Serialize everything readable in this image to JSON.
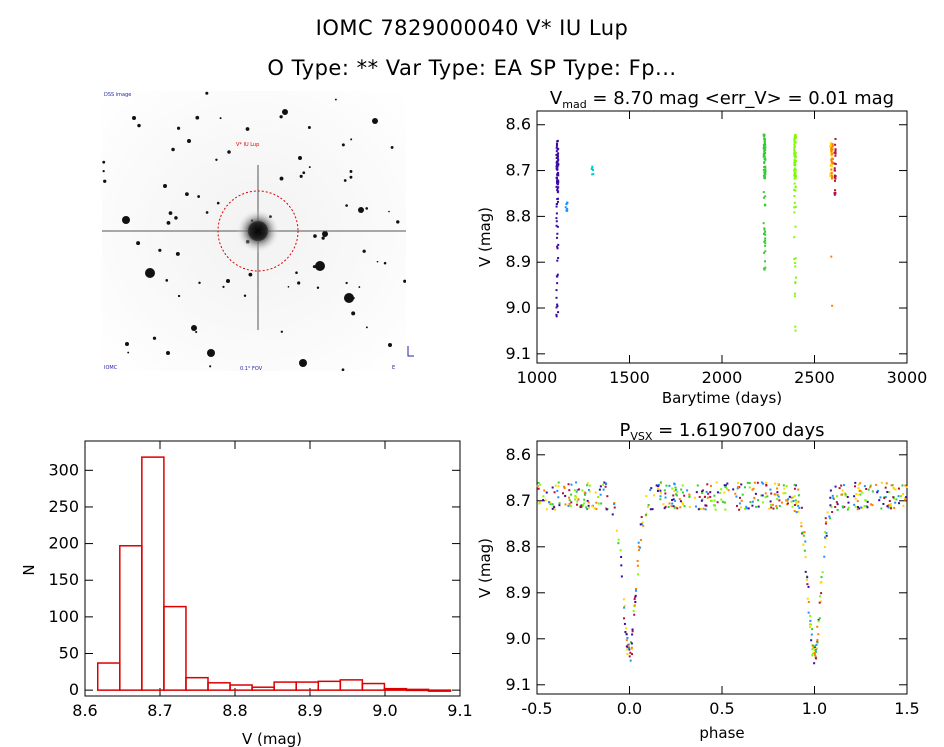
{
  "header": {
    "title": "IOMC 7829000040   V* IU Lup",
    "subtitle": "O Type: **  Var Type: EA  SP Type: Fp..."
  },
  "image_panel": {
    "corner_tl": "DSS image",
    "star_label": "V* IU Lup",
    "bottom_left": "IOMC",
    "bottom_mid": "0.1° FOV",
    "bottom_right": "E"
  },
  "chart_data": [
    {
      "id": "light_curve",
      "type": "scatter",
      "title_main": "V",
      "title_sub": "mad",
      "title_rest": " = 8.70 mag <err_V> = 0.01 mag",
      "xlabel": "Barytime (days)",
      "ylabel": "V (mag)",
      "xlim": [
        1000,
        3000
      ],
      "ylim": [
        9.12,
        8.57
      ],
      "y_inverted": true,
      "xticks": [
        1000,
        1500,
        2000,
        2500,
        3000
      ],
      "yticks": [
        8.6,
        8.7,
        8.8,
        8.9,
        9.0,
        9.1
      ],
      "series": [
        {
          "color": "#3a0aa6",
          "x_range": [
            1105,
            1115
          ],
          "y_core": [
            8.63,
            8.75
          ],
          "y_tail": [
            8.75,
            9.02
          ],
          "n": 90
        },
        {
          "color": "#1e90ff",
          "x_range": [
            1155,
            1165
          ],
          "y_core": [
            8.77,
            8.8
          ],
          "y_tail": [
            8.77,
            8.8
          ],
          "n": 8
        },
        {
          "color": "#00ced1",
          "x_range": [
            1295,
            1305
          ],
          "y_core": [
            8.69,
            8.71
          ],
          "y_tail": [
            8.69,
            8.71
          ],
          "n": 6
        },
        {
          "color": "#32cd32",
          "x_range": [
            2225,
            2235
          ],
          "y_core": [
            8.62,
            8.72
          ],
          "y_tail": [
            8.72,
            8.92
          ],
          "n": 80
        },
        {
          "color": "#7cfc00",
          "x_range": [
            2390,
            2400
          ],
          "y_core": [
            8.62,
            8.72
          ],
          "y_tail": [
            8.72,
            9.06
          ],
          "n": 80
        },
        {
          "color": "#ffd700",
          "x_range": [
            2585,
            2595
          ],
          "y_core": [
            8.64,
            8.72
          ],
          "y_tail": [
            8.64,
            8.72
          ],
          "n": 25
        },
        {
          "color": "#ff7f00",
          "x_range": [
            2590,
            2600
          ],
          "y_core": [
            8.64,
            8.72
          ],
          "y_tail": [
            8.88,
            9.0
          ],
          "n": 25
        },
        {
          "color": "#b0103a",
          "x_range": [
            2608,
            2615
          ],
          "y_core": [
            8.63,
            8.76
          ],
          "y_tail": [
            8.63,
            8.76
          ],
          "n": 25
        }
      ]
    },
    {
      "id": "histogram",
      "type": "bar",
      "xlabel": "V (mag)",
      "ylabel": "N",
      "xlim": [
        8.6,
        9.1
      ],
      "ylim": [
        -8,
        340
      ],
      "xticks": [
        "8.6",
        "8.7",
        "8.8",
        "8.9",
        "9.0",
        "9.1"
      ],
      "xtick_values": [
        8.6,
        8.7,
        8.8,
        8.9,
        9.0,
        9.1
      ],
      "yticks": [
        "0",
        "50",
        "100",
        "150",
        "200",
        "250",
        "300"
      ],
      "ytick_values": [
        0,
        50,
        100,
        150,
        200,
        250,
        300
      ],
      "bin_start": 8.617,
      "bin_width": 0.0294,
      "values": [
        37,
        197,
        318,
        114,
        17,
        10,
        7,
        4,
        11,
        11,
        12,
        14,
        9,
        2,
        1,
        0
      ],
      "bar_color": "#dd0000"
    },
    {
      "id": "phased",
      "type": "scatter",
      "title_main": "P",
      "title_sub": "VSX",
      "title_rest": " = 1.6190700 days",
      "xlabel": "phase",
      "ylabel": "V (mag)",
      "xlim": [
        -0.5,
        1.5
      ],
      "ylim": [
        9.12,
        8.57
      ],
      "y_inverted": true,
      "xticks": [
        -0.5,
        0.0,
        0.5,
        1.0,
        1.5
      ],
      "yticks": [
        8.6,
        8.7,
        8.8,
        8.9,
        9.0,
        9.1
      ],
      "period_days": 1.61907,
      "baseline_mag": 8.69,
      "primary_eclipse_depth_mag": 0.34,
      "eclipse_phases": [
        0.0,
        1.0
      ],
      "colors": [
        "#3a0aa6",
        "#32cd32",
        "#7cfc00",
        "#ff7f00",
        "#b0103a",
        "#ffd700",
        "#1e90ff"
      ]
    }
  ]
}
